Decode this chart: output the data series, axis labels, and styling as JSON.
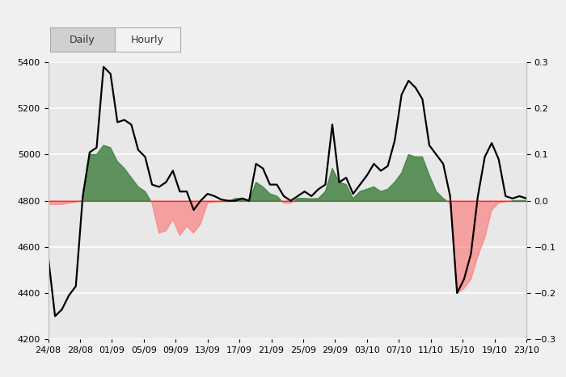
{
  "xlim": [
    0,
    61
  ],
  "ylim_left": [
    4200,
    5400
  ],
  "ylim_right": [
    -0.3,
    0.3
  ],
  "baseline_price": 4800,
  "x_tick_labels": [
    "24/08",
    "28/08",
    "01/09",
    "05/09",
    "09/09",
    "13/09",
    "17/09",
    "21/09",
    "25/09",
    "29/09",
    "03/10",
    "07/10",
    "11/10",
    "15/10",
    "19/10",
    "23/10"
  ],
  "background_color": "#e8e8e8",
  "green_color": "#3a7d3a",
  "red_color": "#ff8888",
  "line_color": "#000000",
  "price_data": [
    4560,
    4300,
    4330,
    4390,
    4430,
    4820,
    5010,
    5030,
    5380,
    5350,
    5140,
    5150,
    5130,
    5020,
    4990,
    4870,
    4860,
    4880,
    4930,
    4840,
    4840,
    4760,
    4800,
    4830,
    4820,
    4805,
    4800,
    4800,
    4810,
    4800,
    4960,
    4940,
    4870,
    4870,
    4820,
    4800,
    4820,
    4840,
    4820,
    4850,
    4870,
    5130,
    4880,
    4900,
    4830,
    4870,
    4910,
    4960,
    4930,
    4950,
    5060,
    5260,
    5320,
    5290,
    5240,
    5040,
    5000,
    4960,
    4820,
    4400,
    4460,
    4570,
    4820,
    4990,
    5050,
    4980,
    4820,
    4810,
    4820,
    4810
  ],
  "sentiment_data": [
    -0.008,
    -0.008,
    -0.008,
    -0.005,
    -0.003,
    0.001,
    0.1,
    0.1,
    0.12,
    0.115,
    0.085,
    0.07,
    0.05,
    0.03,
    0.02,
    -0.005,
    -0.07,
    -0.065,
    -0.04,
    -0.075,
    -0.055,
    -0.07,
    -0.05,
    -0.005,
    -0.003,
    -0.002,
    -0.002,
    0.005,
    0.005,
    -0.002,
    0.04,
    0.03,
    0.015,
    0.01,
    -0.005,
    -0.005,
    0.005,
    0.005,
    0.004,
    0.005,
    0.02,
    0.07,
    0.04,
    0.035,
    0.005,
    0.02,
    0.025,
    0.03,
    0.02,
    0.025,
    0.04,
    0.06,
    0.1,
    0.095,
    0.095,
    0.055,
    0.02,
    0.005,
    -0.005,
    -0.2,
    -0.19,
    -0.17,
    -0.12,
    -0.08,
    -0.02,
    -0.005,
    -0.002,
    0.001,
    0.001,
    0.001
  ]
}
